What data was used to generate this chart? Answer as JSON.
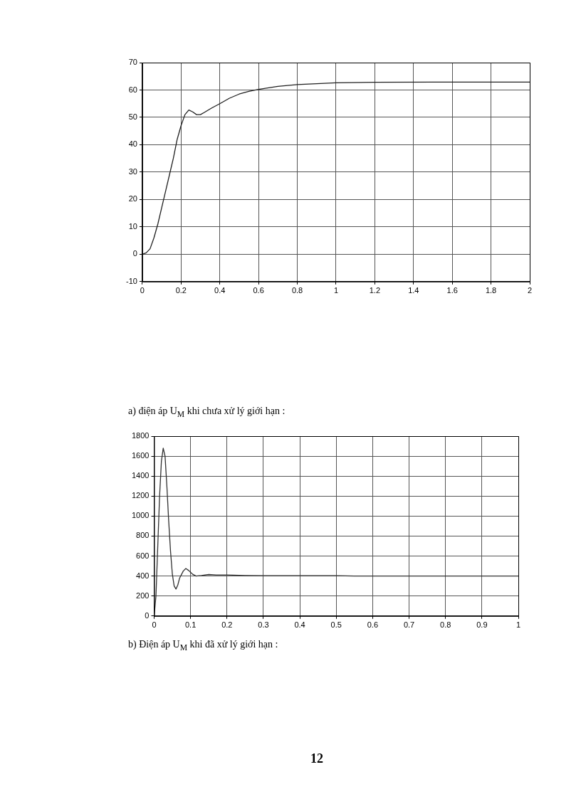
{
  "chart_data": [
    {
      "type": "line",
      "x": [
        0,
        0.02,
        0.04,
        0.06,
        0.08,
        0.1,
        0.12,
        0.14,
        0.16,
        0.18,
        0.2,
        0.22,
        0.24,
        0.26,
        0.28,
        0.3,
        0.32,
        0.36,
        0.4,
        0.45,
        0.5,
        0.55,
        0.6,
        0.7,
        0.8,
        0.9,
        1.0,
        1.2,
        1.5,
        2
      ],
      "series": [
        {
          "color": "#202020",
          "values": [
            0,
            0.5,
            2,
            6,
            11,
            17,
            23,
            29,
            35,
            42,
            47,
            51,
            52.7,
            52,
            51,
            51,
            51.8,
            53.5,
            55,
            57,
            58.5,
            59.5,
            60.2,
            61.3,
            62,
            62.3,
            62.6,
            62.8,
            62.9,
            62.9
          ]
        }
      ],
      "xlim": [
        0,
        2
      ],
      "xticks": [
        0,
        0.2,
        0.4,
        0.6,
        0.8,
        1,
        1.2,
        1.4,
        1.6,
        1.8,
        2
      ],
      "ylim": [
        -10,
        70
      ],
      "yticks": [
        -10,
        0,
        10,
        20,
        30,
        40,
        50,
        60,
        70
      ],
      "grid": true,
      "legend": false,
      "marker": "none",
      "line_style": "solid",
      "annotations": [
        "a)  điện áp U$_{M}$ khi chưa xử lý giới  hạn :"
      ]
    },
    {
      "type": "line",
      "x": [
        0,
        0.005,
        0.01,
        0.015,
        0.02,
        0.025,
        0.03,
        0.035,
        0.04,
        0.045,
        0.05,
        0.055,
        0.06,
        0.065,
        0.07,
        0.08,
        0.087,
        0.095,
        0.105,
        0.115,
        0.13,
        0.15,
        0.17,
        0.2,
        0.25,
        0.3,
        0.5,
        0.55,
        1
      ],
      "series": [
        {
          "color": "#303030",
          "values": [
            0,
            200,
            700,
            1200,
            1550,
            1680,
            1600,
            1300,
            950,
            650,
            420,
            300,
            270,
            310,
            380,
            450,
            475,
            455,
            420,
            400,
            405,
            415,
            410,
            410,
            405,
            403,
            403,
            400,
            400
          ]
        }
      ],
      "xlim": [
        0,
        1
      ],
      "xticks": [
        0,
        0.1,
        0.2,
        0.3,
        0.4,
        0.5,
        0.6,
        0.7,
        0.8,
        0.9,
        1
      ],
      "ylim": [
        0,
        1800
      ],
      "yticks": [
        0,
        200,
        400,
        600,
        800,
        1000,
        1200,
        1400,
        1600,
        1800
      ],
      "grid": true,
      "legend": false,
      "marker": "none",
      "line_style": "solid",
      "annotations": [
        "b)  Điện  áp U$_{M}$ khi đã xử lý giới  hạn :",
        "12"
      ]
    }
  ]
}
